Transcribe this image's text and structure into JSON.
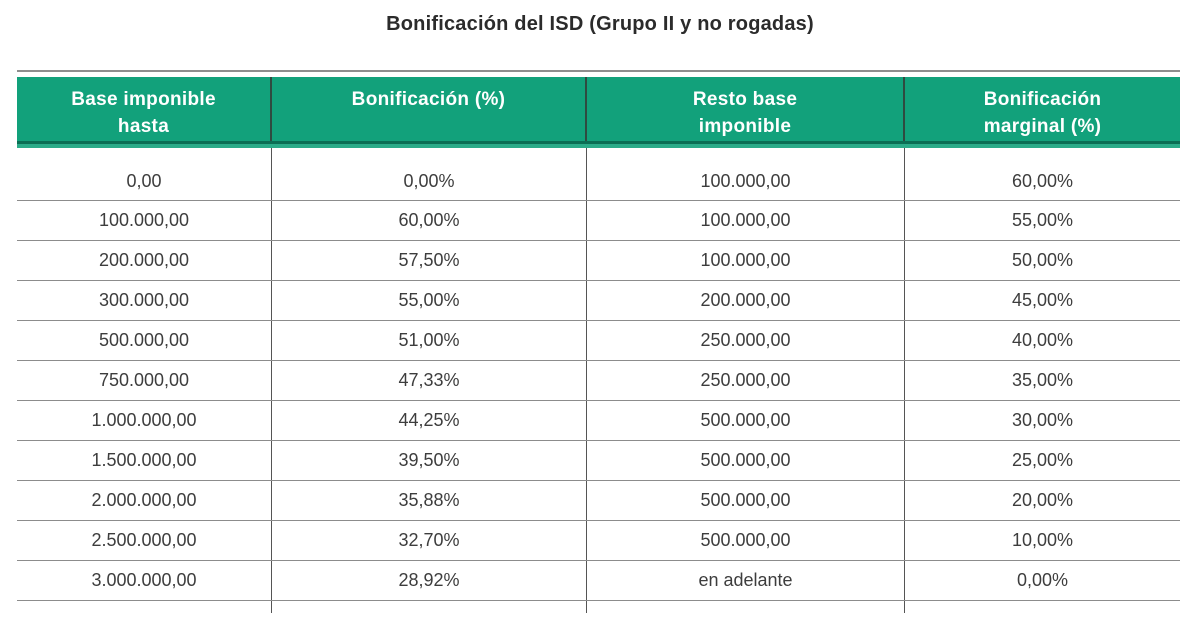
{
  "title": "Bonificación del ISD (Grupo II y no rogadas)",
  "chart_data": {
    "type": "table",
    "title": "Bonificación del ISD (Grupo II y no rogadas)",
    "columns": [
      "Base imponible hasta",
      "Bonificación (%)",
      "Resto base imponible",
      "Bonificación marginal (%)"
    ],
    "header_display": [
      "Base imponible\nhasta",
      "Bonificación (%)",
      "Resto base\nimponible",
      "Bonificación\nmarginal (%)"
    ],
    "rows": [
      [
        "0,00",
        "0,00%",
        "100.000,00",
        "60,00%"
      ],
      [
        "100.000,00",
        "60,00%",
        "100.000,00",
        "55,00%"
      ],
      [
        "200.000,00",
        "57,50%",
        "100.000,00",
        "50,00%"
      ],
      [
        "300.000,00",
        "55,00%",
        "200.000,00",
        "45,00%"
      ],
      [
        "500.000,00",
        "51,00%",
        "250.000,00",
        "40,00%"
      ],
      [
        "750.000,00",
        "47,33%",
        "250.000,00",
        "35,00%"
      ],
      [
        "1.000.000,00",
        "44,25%",
        "500.000,00",
        "30,00%"
      ],
      [
        "1.500.000,00",
        "39,50%",
        "500.000,00",
        "25,00%"
      ],
      [
        "2.000.000,00",
        "35,88%",
        "500.000,00",
        "20,00%"
      ],
      [
        "2.500.000,00",
        "32,70%",
        "500.000,00",
        "10,00%"
      ],
      [
        "3.000.000,00",
        "28,92%",
        "en adelante",
        "0,00%"
      ]
    ]
  },
  "colors": {
    "header_bg": "#12A17B",
    "header_border_dark": "#0B6E54",
    "header_accent_teal": "#2BAB88",
    "header_text": "#FFFFFF",
    "row_line": "#8C8C8C",
    "column_line": "#555555",
    "body_text": "#3D3D3D",
    "title_text": "#2B2B2B"
  }
}
